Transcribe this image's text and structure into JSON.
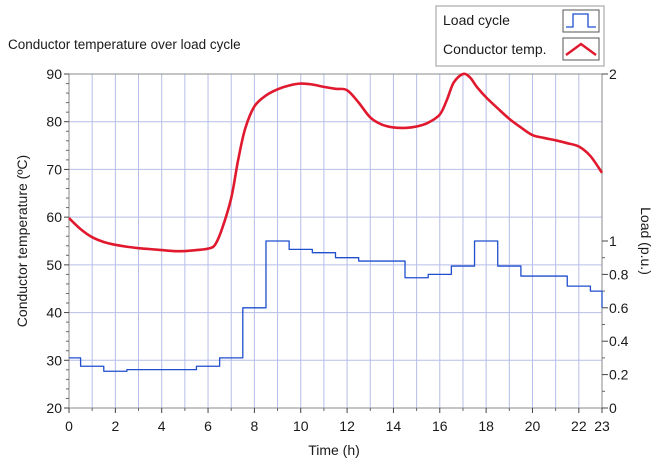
{
  "chart_data": {
    "type": "line",
    "title": "Conductor temperature over load cycle",
    "xlabel": "Time (h)",
    "ylabel": "Conductor temperature (ºC)",
    "y2label": "Load (p.u.)",
    "xlim": [
      0,
      23
    ],
    "ylim": [
      20,
      90
    ],
    "y2lim": [
      0,
      2
    ],
    "x_ticks": [
      0,
      2,
      4,
      6,
      8,
      10,
      12,
      14,
      16,
      18,
      20,
      22,
      23
    ],
    "y_ticks": [
      20,
      30,
      40,
      50,
      60,
      70,
      80,
      90
    ],
    "y2_ticks": [
      0,
      0.2,
      0.4,
      0.6,
      0.8,
      1,
      2
    ],
    "grid": true,
    "legend_position": "top-right",
    "series": [
      {
        "name": "Load cycle",
        "axis": "right",
        "kind": "step",
        "color": "#1f4fcf",
        "x": [
          0,
          0.5,
          1.5,
          2.5,
          5.5,
          6.5,
          7.5,
          8.5,
          9.5,
          10.5,
          11.5,
          12.5,
          14.5,
          15.5,
          16.5,
          17.5,
          18.5,
          19.5,
          21.5,
          22.5,
          23
        ],
        "y": [
          0.3,
          0.25,
          0.22,
          0.23,
          0.25,
          0.3,
          0.6,
          1.0,
          0.95,
          0.93,
          0.9,
          0.88,
          0.78,
          0.8,
          0.85,
          1.0,
          0.85,
          0.79,
          0.73,
          0.7,
          0.6
        ]
      },
      {
        "name": "Conductor temp.",
        "axis": "left",
        "kind": "line",
        "color": "#e0192e",
        "x": [
          0,
          0.5,
          1,
          1.5,
          2,
          2.5,
          3,
          3.5,
          4,
          4.5,
          5,
          5.5,
          6,
          6.3,
          6.6,
          7,
          7.3,
          7.6,
          8,
          8.5,
          9,
          9.5,
          10,
          10.5,
          11,
          11.5,
          12,
          12.5,
          13,
          13.5,
          14,
          14.5,
          15,
          15.5,
          16,
          16.3,
          16.6,
          17,
          17.3,
          17.6,
          18,
          18.5,
          19,
          19.5,
          20,
          20.5,
          21,
          21.5,
          22,
          22.5,
          23
        ],
        "y": [
          59.8,
          57.5,
          55.8,
          54.8,
          54.2,
          53.8,
          53.5,
          53.3,
          53.1,
          52.9,
          52.9,
          53.1,
          53.4,
          54.2,
          57.5,
          64,
          72,
          78.5,
          83.2,
          85.5,
          86.8,
          87.6,
          88.0,
          87.8,
          87.3,
          86.9,
          86.6,
          84.0,
          80.9,
          79.4,
          78.8,
          78.7,
          79.0,
          79.8,
          81.5,
          84.5,
          88.2,
          90.0,
          89.3,
          87.3,
          85.1,
          82.8,
          80.6,
          78.8,
          77.2,
          76.6,
          76.1,
          75.5,
          74.8,
          72.8,
          69.3
        ]
      }
    ]
  },
  "legend": {
    "items": [
      {
        "label": "Load cycle",
        "icon": "step-icon",
        "color": "#1f4fcf"
      },
      {
        "label": "Conductor temp.",
        "icon": "peak-line-icon",
        "color": "#e0192e"
      }
    ]
  }
}
